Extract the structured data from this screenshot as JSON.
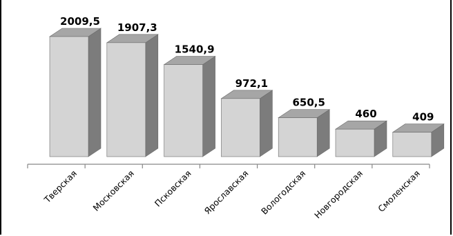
{
  "chart_data": {
    "type": "bar",
    "style": "3d-column",
    "categories": [
      "Тверская",
      "Московская",
      "Псковская",
      "Ярославская",
      "Вологодская",
      "Новгородская",
      "Смоленская"
    ],
    "values": [
      2009.5,
      1907.3,
      1540.9,
      972.1,
      650.5,
      460,
      409
    ],
    "value_labels": [
      "2009,5",
      "1907,3",
      "1540,9",
      "972,1",
      "650,5",
      "460",
      "409"
    ],
    "title": "",
    "xlabel": "",
    "ylabel": "",
    "ylim": [
      0,
      2009.5
    ],
    "grid": false,
    "legend": "none",
    "colors": {
      "front": "#d4d4d4",
      "side": "#7c7c7c",
      "top": "#a6a6a6",
      "edge": "#6a6a6a",
      "axis": "#878787"
    }
  }
}
